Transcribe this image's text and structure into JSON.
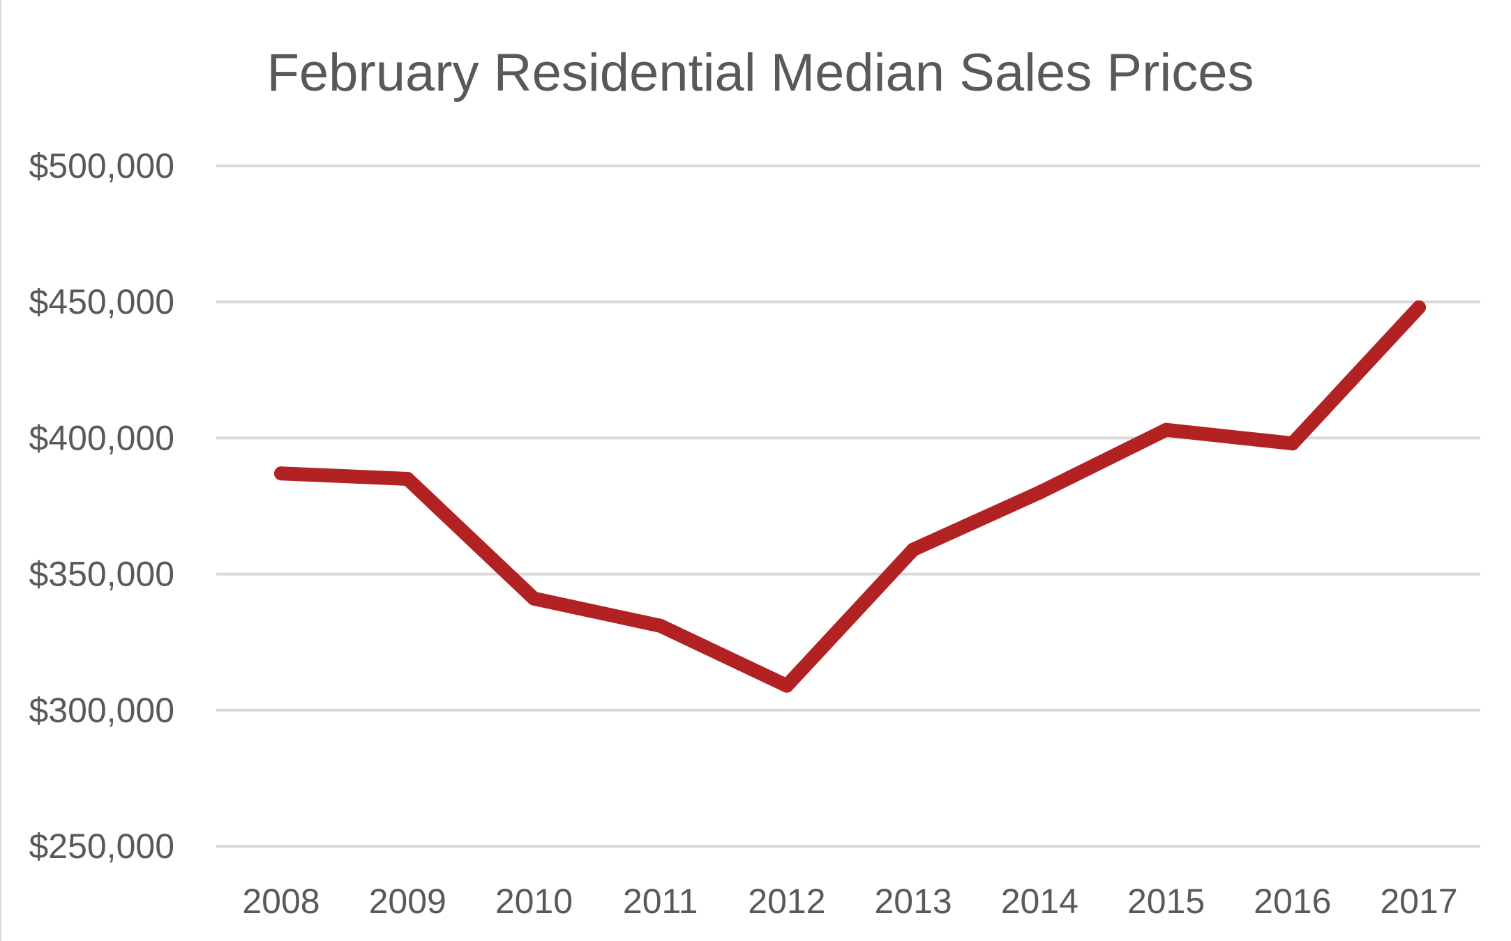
{
  "chart_data": {
    "type": "line",
    "title": "February Residential Median Sales Prices",
    "xlabel": "",
    "ylabel": "",
    "categories": [
      "2008",
      "2009",
      "2010",
      "2011",
      "2012",
      "2013",
      "2014",
      "2015",
      "2016",
      "2017"
    ],
    "series": [
      {
        "values": [
          387000,
          385000,
          341000,
          331000,
          309000,
          359000,
          380000,
          403000,
          398000,
          448000
        ]
      }
    ],
    "ylim": [
      250000,
      500000
    ],
    "yticks": [
      250000,
      300000,
      350000,
      400000,
      450000,
      500000
    ],
    "ytick_labels": [
      "$250,000",
      "$300,000",
      "$350,000",
      "$400,000",
      "$450,000",
      "$500,000"
    ],
    "grid": "horizontal",
    "legend": "none",
    "line_color": "#b22222"
  }
}
